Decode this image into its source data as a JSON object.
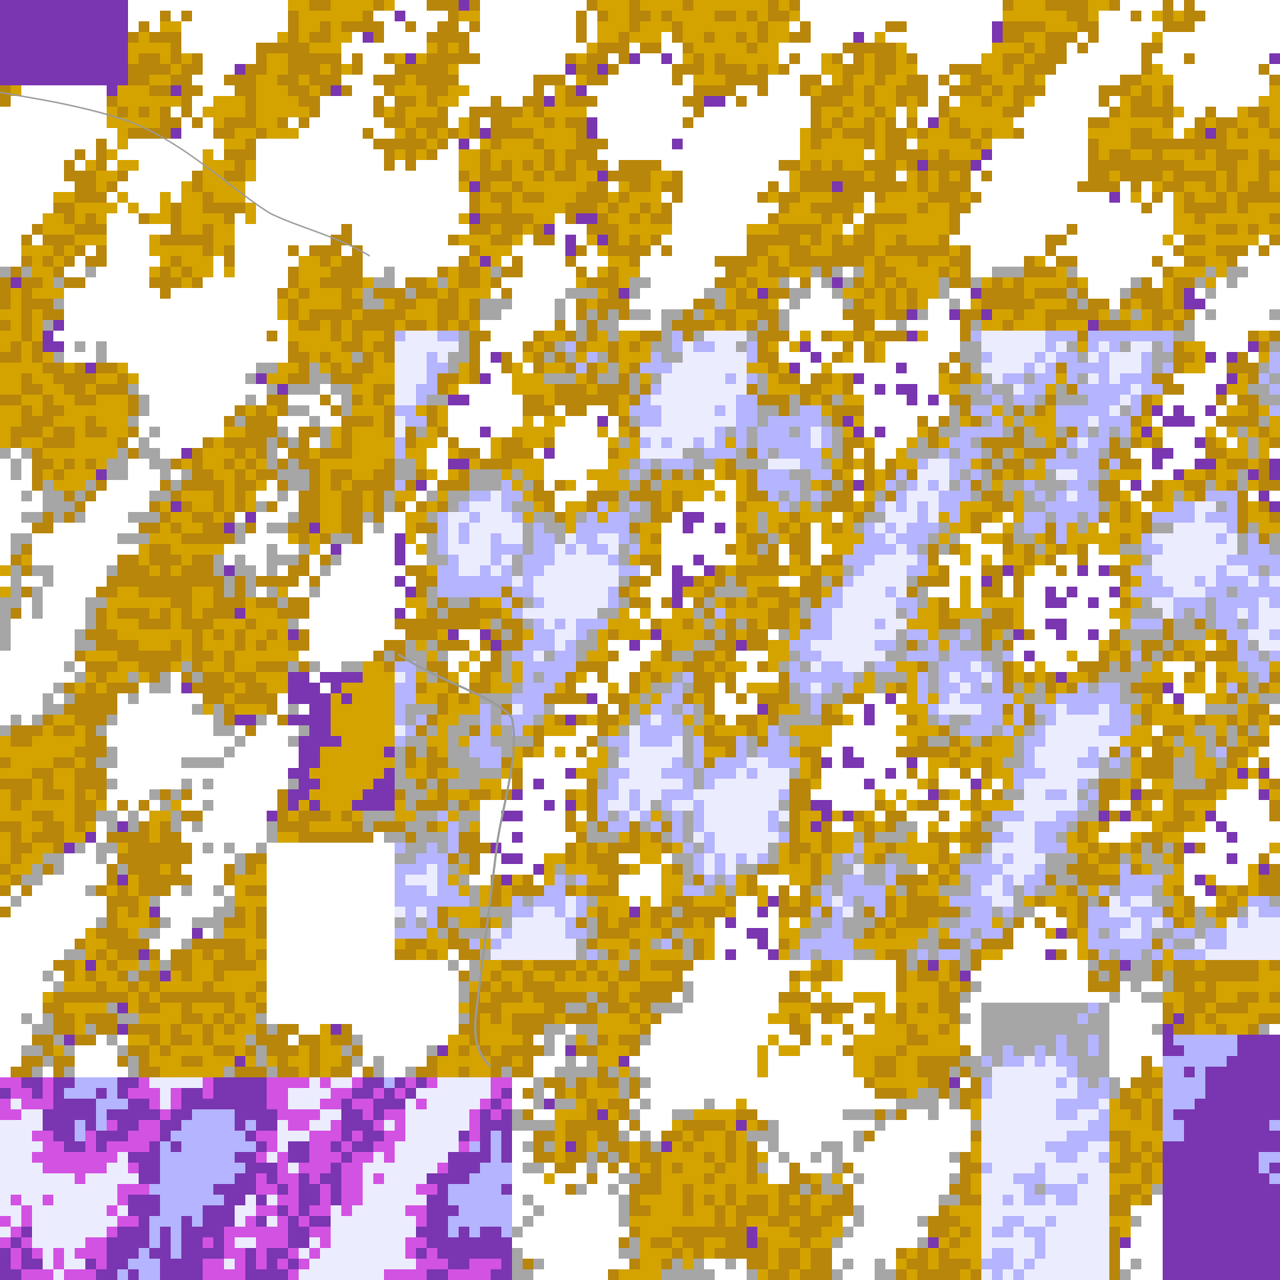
{
  "map": {
    "palette": {
      "clear": "#ffffff",
      "gold": "#d4a300",
      "gold_dark": "#b8860b",
      "purple": "#7a36b0",
      "magenta": "#d252e2",
      "gray": "#a6a6a6",
      "lavender": "#b4b4ff",
      "pale": "#ececff"
    }
  }
}
